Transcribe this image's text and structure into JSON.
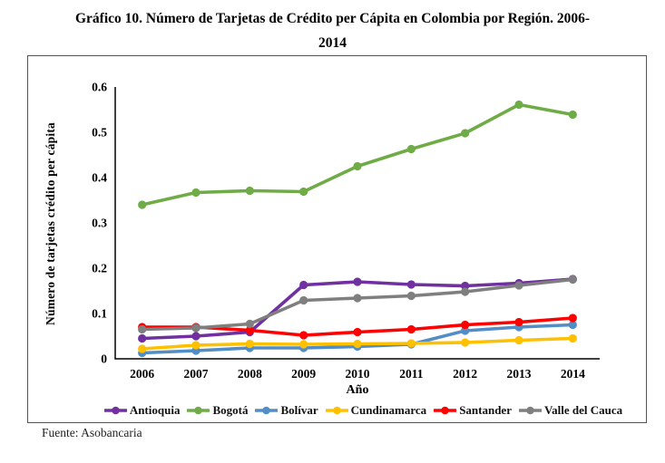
{
  "title": {
    "line1": "Gráfico 10. Número de Tarjetas de Crédito per Cápita en Colombia por Región. 2006-",
    "line2": "2014"
  },
  "source": "Fuente: Asobancaria",
  "chart_data": {
    "type": "line",
    "title": "Gráfico 10. Número de Tarjetas de Crédito per Cápita en Colombia por Región. 2006-2014",
    "xlabel": "Año",
    "ylabel": "Número de tarjetas crédito per cápita",
    "categories": [
      "2006",
      "2007",
      "2008",
      "2009",
      "2010",
      "2011",
      "2012",
      "2013",
      "2014"
    ],
    "ylim": [
      0,
      0.6
    ],
    "yticks": [
      0,
      0.1,
      0.2,
      0.3,
      0.4,
      0.5,
      0.6
    ],
    "ytick_labels": [
      "0",
      "0.1",
      "0.2",
      "0.3",
      "0.4",
      "0.5",
      "0.6"
    ],
    "grid": false,
    "legend_position": "bottom",
    "series": [
      {
        "name": "Antioquia",
        "color": "#7030A0",
        "values": [
          0.045,
          0.05,
          0.059,
          0.163,
          0.17,
          0.164,
          0.161,
          0.167,
          0.176
        ]
      },
      {
        "name": "Bogotá",
        "color": "#6FAC47",
        "values": [
          0.34,
          0.367,
          0.371,
          0.369,
          0.425,
          0.463,
          0.498,
          0.561,
          0.539
        ]
      },
      {
        "name": "Bolívar",
        "color": "#538DC5",
        "values": [
          0.013,
          0.018,
          0.024,
          0.024,
          0.027,
          0.032,
          0.062,
          0.07,
          0.075
        ]
      },
      {
        "name": "Cundinamarca",
        "color": "#FFC000",
        "values": [
          0.022,
          0.03,
          0.033,
          0.032,
          0.033,
          0.034,
          0.036,
          0.041,
          0.045
        ]
      },
      {
        "name": "Santander",
        "color": "#FE0000",
        "values": [
          0.07,
          0.07,
          0.063,
          0.052,
          0.059,
          0.065,
          0.075,
          0.081,
          0.09
        ]
      },
      {
        "name": "Valle del Cauca",
        "color": "#7F7F7F",
        "values": [
          0.065,
          0.068,
          0.077,
          0.129,
          0.134,
          0.139,
          0.148,
          0.162,
          0.175
        ]
      }
    ]
  }
}
